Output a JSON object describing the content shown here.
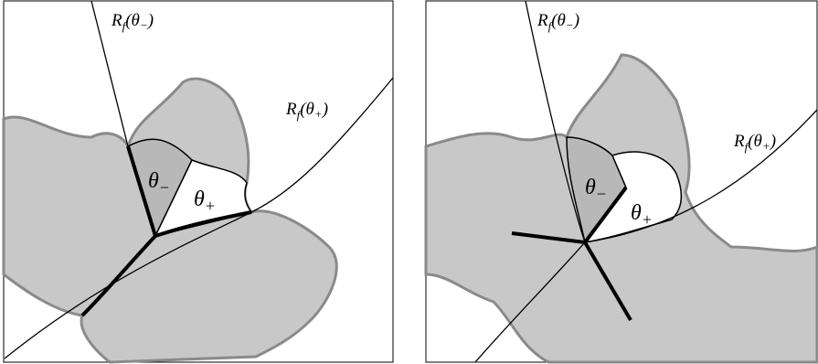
{
  "panels": [
    {
      "ray_minus": {
        "symbol": "R",
        "sub": "f",
        "open": "(θ",
        "arg_sub": "−",
        "close": ")"
      },
      "ray_plus": {
        "symbol": "R",
        "sub": "f",
        "open": "(θ",
        "arg_sub": "+",
        "close": ")"
      },
      "sector_minus": {
        "symbol": "θ",
        "sub": "−"
      },
      "sector_plus": {
        "symbol": "θ",
        "sub": "+"
      }
    },
    {
      "ray_minus": {
        "symbol": "R",
        "sub": "f",
        "open": "(θ",
        "arg_sub": "−",
        "close": ")"
      },
      "ray_plus": {
        "symbol": "R",
        "sub": "f",
        "open": "(θ",
        "arg_sub": "+",
        "close": ")"
      },
      "sector_minus": {
        "symbol": "θ",
        "sub": "−"
      },
      "sector_plus": {
        "symbol": "θ",
        "sub": "+"
      }
    }
  ]
}
